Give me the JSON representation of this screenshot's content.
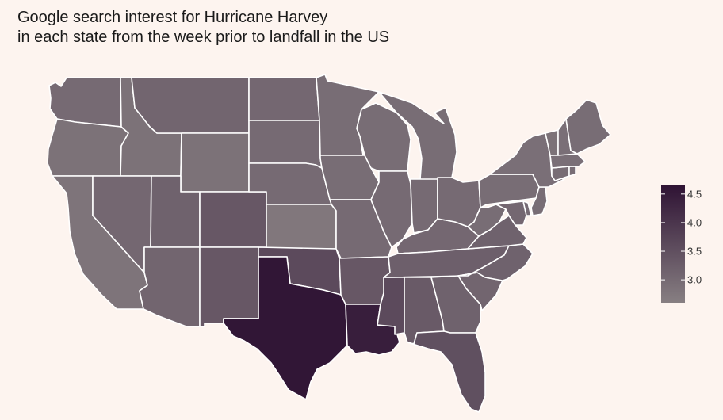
{
  "title": {
    "line1": "Google search interest for Hurricane Harvey",
    "line2": "in each state from the week prior to landfall in the US"
  },
  "colors": {
    "background": "#fdf4ef",
    "border": "#ffffff",
    "scale_low": "#877f82",
    "scale_high": "#2f1334"
  },
  "legend": {
    "min": 2.6,
    "max": 4.65,
    "ticks": [
      {
        "value": 3.0,
        "label": "3.0"
      },
      {
        "value": 3.5,
        "label": "3.5"
      },
      {
        "value": 4.0,
        "label": "4.0"
      },
      {
        "value": 4.5,
        "label": "4.5"
      }
    ]
  },
  "states": [
    {
      "id": "WA",
      "name": "Washington",
      "value": 3.0
    },
    {
      "id": "OR",
      "name": "Oregon",
      "value": 2.85
    },
    {
      "id": "CA",
      "name": "California",
      "value": 2.8
    },
    {
      "id": "NV",
      "name": "Nevada",
      "value": 3.05
    },
    {
      "id": "ID",
      "name": "Idaho",
      "value": 2.85
    },
    {
      "id": "MT",
      "name": "Montana",
      "value": 3.1
    },
    {
      "id": "WY",
      "name": "Wyoming",
      "value": 2.85
    },
    {
      "id": "UT",
      "name": "Utah",
      "value": 3.15
    },
    {
      "id": "AZ",
      "name": "Arizona",
      "value": 3.1
    },
    {
      "id": "CO",
      "name": "Colorado",
      "value": 3.35
    },
    {
      "id": "NM",
      "name": "New Mexico",
      "value": 3.35
    },
    {
      "id": "ND",
      "name": "North Dakota",
      "value": 3.05
    },
    {
      "id": "SD",
      "name": "South Dakota",
      "value": 3.0
    },
    {
      "id": "NE",
      "name": "Nebraska",
      "value": 3.0
    },
    {
      "id": "KS",
      "name": "Kansas",
      "value": 2.75
    },
    {
      "id": "OK",
      "name": "Oklahoma",
      "value": 3.6
    },
    {
      "id": "TX",
      "name": "Texas",
      "value": 4.6
    },
    {
      "id": "MN",
      "name": "Minnesota",
      "value": 2.95
    },
    {
      "id": "IA",
      "name": "Iowa",
      "value": 2.95
    },
    {
      "id": "MO",
      "name": "Missouri",
      "value": 3.0
    },
    {
      "id": "AR",
      "name": "Arkansas",
      "value": 3.35
    },
    {
      "id": "LA",
      "name": "Louisiana",
      "value": 4.45
    },
    {
      "id": "WI",
      "name": "Wisconsin",
      "value": 2.95
    },
    {
      "id": "IL",
      "name": "Illinois",
      "value": 3.0
    },
    {
      "id": "MS",
      "name": "Mississippi",
      "value": 3.6
    },
    {
      "id": "MI",
      "name": "Michigan",
      "value": 2.95
    },
    {
      "id": "IN",
      "name": "Indiana",
      "value": 3.0
    },
    {
      "id": "KY",
      "name": "Kentucky",
      "value": 3.05
    },
    {
      "id": "TN",
      "name": "Tennessee",
      "value": 3.2
    },
    {
      "id": "AL",
      "name": "Alabama",
      "value": 3.3
    },
    {
      "id": "OH",
      "name": "Ohio",
      "value": 3.0
    },
    {
      "id": "GA",
      "name": "Georgia",
      "value": 3.15
    },
    {
      "id": "FL",
      "name": "Florida",
      "value": 3.5
    },
    {
      "id": "SC",
      "name": "South Carolina",
      "value": 3.1
    },
    {
      "id": "NC",
      "name": "North Carolina",
      "value": 3.15
    },
    {
      "id": "VA",
      "name": "Virginia",
      "value": 3.15
    },
    {
      "id": "WV",
      "name": "West Virginia",
      "value": 2.95
    },
    {
      "id": "PA",
      "name": "Pennsylvania",
      "value": 2.95
    },
    {
      "id": "NY",
      "name": "New York",
      "value": 2.9
    },
    {
      "id": "MD",
      "name": "Maryland",
      "value": 3.05
    },
    {
      "id": "DE",
      "name": "Delaware",
      "value": 3.0
    },
    {
      "id": "NJ",
      "name": "New Jersey",
      "value": 2.95
    },
    {
      "id": "CT",
      "name": "Connecticut",
      "value": 2.95
    },
    {
      "id": "RI",
      "name": "Rhode Island",
      "value": 2.95
    },
    {
      "id": "MA",
      "name": "Massachusetts",
      "value": 2.9
    },
    {
      "id": "VT",
      "name": "Vermont",
      "value": 2.85
    },
    {
      "id": "NH",
      "name": "New Hampshire",
      "value": 2.9
    },
    {
      "id": "ME",
      "name": "Maine",
      "value": 2.95
    }
  ]
}
